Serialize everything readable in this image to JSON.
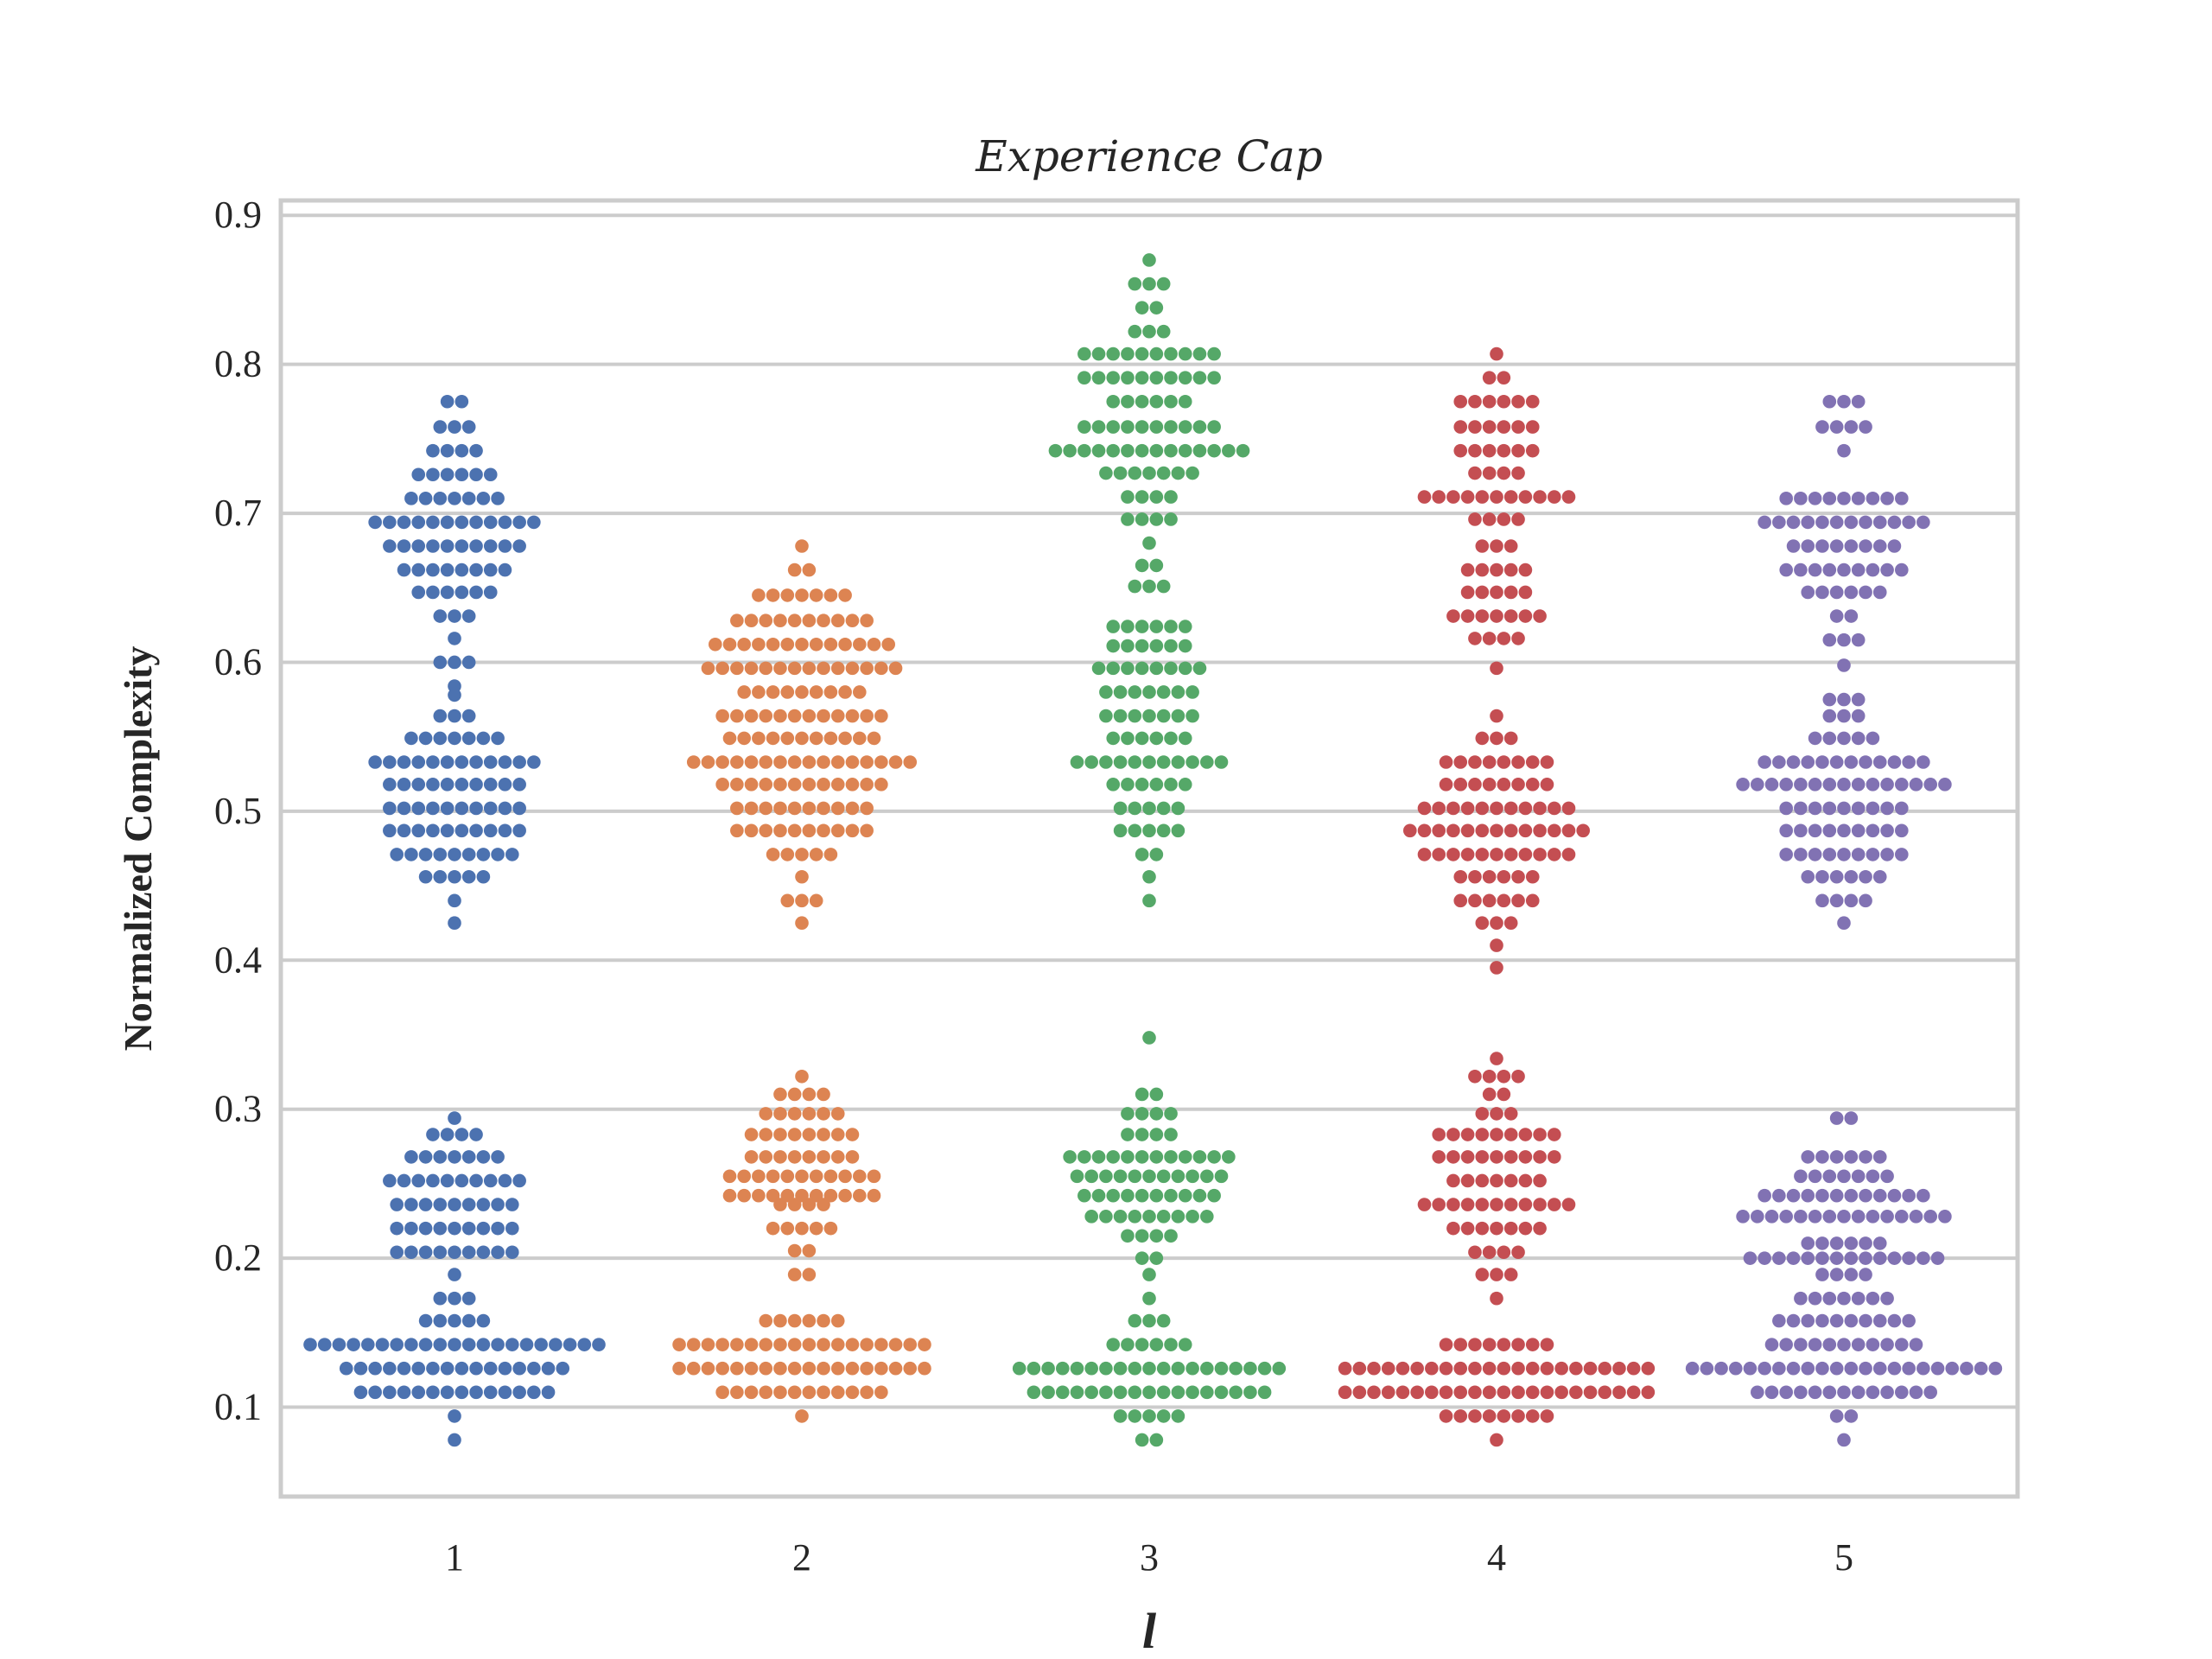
{
  "chart_data": {
    "type": "scatter",
    "subtype": "swarm",
    "title": "Experience Cap",
    "xlabel": "l",
    "ylabel": "Normalized Complexity",
    "categories": [
      "1",
      "2",
      "3",
      "4",
      "5"
    ],
    "ylim": [
      0.04,
      0.91
    ],
    "yticks": [
      "0.1",
      "0.2",
      "0.3",
      "0.4",
      "0.5",
      "0.6",
      "0.7",
      "0.8",
      "0.9"
    ],
    "grid": "horizontal",
    "legend": "none",
    "colors": [
      "#4c72b0",
      "#dd8452",
      "#55a868",
      "#c44e52",
      "#8172b3"
    ],
    "series": [
      {
        "category": "1",
        "bins": [
          [
            0.078,
            1
          ],
          [
            0.094,
            1
          ],
          [
            0.11,
            14
          ],
          [
            0.126,
            16
          ],
          [
            0.142,
            21
          ],
          [
            0.158,
            5
          ],
          [
            0.173,
            3
          ],
          [
            0.189,
            1
          ],
          [
            0.204,
            9
          ],
          [
            0.22,
            9
          ],
          [
            0.236,
            9
          ],
          [
            0.252,
            10
          ],
          [
            0.268,
            7
          ],
          [
            0.283,
            4
          ],
          [
            0.294,
            1
          ],
          [
            0.425,
            1
          ],
          [
            0.44,
            1
          ],
          [
            0.456,
            5
          ],
          [
            0.471,
            9
          ],
          [
            0.487,
            10
          ],
          [
            0.502,
            10
          ],
          [
            0.518,
            10
          ],
          [
            0.533,
            12
          ],
          [
            0.549,
            7
          ],
          [
            0.564,
            3
          ],
          [
            0.578,
            1
          ],
          [
            0.584,
            1
          ],
          [
            0.6,
            3
          ],
          [
            0.616,
            1
          ],
          [
            0.631,
            3
          ],
          [
            0.647,
            6
          ],
          [
            0.662,
            8
          ],
          [
            0.678,
            10
          ],
          [
            0.694,
            12
          ],
          [
            0.71,
            7
          ],
          [
            0.726,
            6
          ],
          [
            0.742,
            4
          ],
          [
            0.758,
            3
          ],
          [
            0.775,
            2
          ]
        ]
      },
      {
        "category": "2",
        "bins": [
          [
            0.094,
            1
          ],
          [
            0.11,
            12
          ],
          [
            0.126,
            18
          ],
          [
            0.142,
            18
          ],
          [
            0.158,
            6
          ],
          [
            0.189,
            2
          ],
          [
            0.205,
            2
          ],
          [
            0.22,
            5
          ],
          [
            0.236,
            4
          ],
          [
            0.242,
            11
          ],
          [
            0.255,
            11
          ],
          [
            0.268,
            8
          ],
          [
            0.283,
            8
          ],
          [
            0.297,
            6
          ],
          [
            0.31,
            4
          ],
          [
            0.322,
            1
          ],
          [
            0.425,
            1
          ],
          [
            0.44,
            3
          ],
          [
            0.456,
            1
          ],
          [
            0.471,
            5
          ],
          [
            0.487,
            10
          ],
          [
            0.502,
            10
          ],
          [
            0.518,
            12
          ],
          [
            0.533,
            16
          ],
          [
            0.549,
            11
          ],
          [
            0.564,
            12
          ],
          [
            0.58,
            9
          ],
          [
            0.596,
            14
          ],
          [
            0.612,
            13
          ],
          [
            0.628,
            10
          ],
          [
            0.645,
            7
          ],
          [
            0.662,
            2
          ],
          [
            0.678,
            1
          ]
        ]
      },
      {
        "category": "3",
        "bins": [
          [
            0.078,
            2
          ],
          [
            0.094,
            5
          ],
          [
            0.11,
            17
          ],
          [
            0.126,
            19
          ],
          [
            0.142,
            6
          ],
          [
            0.158,
            3
          ],
          [
            0.173,
            1
          ],
          [
            0.189,
            1
          ],
          [
            0.2,
            2
          ],
          [
            0.215,
            4
          ],
          [
            0.228,
            9
          ],
          [
            0.242,
            10
          ],
          [
            0.255,
            11
          ],
          [
            0.268,
            12
          ],
          [
            0.283,
            4
          ],
          [
            0.297,
            4
          ],
          [
            0.31,
            2
          ],
          [
            0.348,
            1
          ],
          [
            0.44,
            1
          ],
          [
            0.456,
            1
          ],
          [
            0.471,
            2
          ],
          [
            0.487,
            5
          ],
          [
            0.502,
            5
          ],
          [
            0.518,
            6
          ],
          [
            0.533,
            11
          ],
          [
            0.549,
            6
          ],
          [
            0.564,
            7
          ],
          [
            0.58,
            7
          ],
          [
            0.596,
            8
          ],
          [
            0.611,
            6
          ],
          [
            0.624,
            6
          ],
          [
            0.651,
            3
          ],
          [
            0.665,
            2
          ],
          [
            0.68,
            1
          ],
          [
            0.696,
            4
          ],
          [
            0.711,
            4
          ],
          [
            0.727,
            7
          ],
          [
            0.742,
            14
          ],
          [
            0.758,
            10
          ],
          [
            0.775,
            6
          ],
          [
            0.791,
            10
          ],
          [
            0.807,
            10
          ],
          [
            0.822,
            3
          ],
          [
            0.838,
            2
          ],
          [
            0.854,
            3
          ],
          [
            0.87,
            1
          ]
        ]
      },
      {
        "category": "4",
        "bins": [
          [
            0.078,
            1
          ],
          [
            0.094,
            8
          ],
          [
            0.11,
            22
          ],
          [
            0.126,
            22
          ],
          [
            0.142,
            8
          ],
          [
            0.173,
            1
          ],
          [
            0.189,
            3
          ],
          [
            0.204,
            4
          ],
          [
            0.22,
            7
          ],
          [
            0.236,
            11
          ],
          [
            0.252,
            7
          ],
          [
            0.268,
            9
          ],
          [
            0.283,
            9
          ],
          [
            0.297,
            3
          ],
          [
            0.31,
            2
          ],
          [
            0.322,
            4
          ],
          [
            0.334,
            1
          ],
          [
            0.395,
            1
          ],
          [
            0.41,
            1
          ],
          [
            0.425,
            3
          ],
          [
            0.44,
            6
          ],
          [
            0.456,
            6
          ],
          [
            0.471,
            11
          ],
          [
            0.487,
            13
          ],
          [
            0.502,
            11
          ],
          [
            0.518,
            8
          ],
          [
            0.533,
            8
          ],
          [
            0.549,
            3
          ],
          [
            0.564,
            1
          ],
          [
            0.596,
            1
          ],
          [
            0.616,
            4
          ],
          [
            0.631,
            7
          ],
          [
            0.647,
            5
          ],
          [
            0.662,
            5
          ],
          [
            0.678,
            3
          ],
          [
            0.696,
            4
          ],
          [
            0.711,
            11
          ],
          [
            0.727,
            4
          ],
          [
            0.742,
            6
          ],
          [
            0.758,
            6
          ],
          [
            0.775,
            6
          ],
          [
            0.791,
            2
          ],
          [
            0.807,
            1
          ]
        ]
      },
      {
        "category": "5",
        "bins": [
          [
            0.078,
            1
          ],
          [
            0.094,
            2
          ],
          [
            0.11,
            13
          ],
          [
            0.126,
            22
          ],
          [
            0.142,
            11
          ],
          [
            0.158,
            10
          ],
          [
            0.173,
            7
          ],
          [
            0.189,
            4
          ],
          [
            0.2,
            14
          ],
          [
            0.21,
            6
          ],
          [
            0.228,
            15
          ],
          [
            0.242,
            12
          ],
          [
            0.255,
            7
          ],
          [
            0.268,
            6
          ],
          [
            0.294,
            2
          ],
          [
            0.425,
            1
          ],
          [
            0.44,
            4
          ],
          [
            0.456,
            6
          ],
          [
            0.471,
            9
          ],
          [
            0.487,
            9
          ],
          [
            0.502,
            9
          ],
          [
            0.518,
            15
          ],
          [
            0.533,
            12
          ],
          [
            0.549,
            5
          ],
          [
            0.564,
            3
          ],
          [
            0.575,
            3
          ],
          [
            0.598,
            1
          ],
          [
            0.615,
            3
          ],
          [
            0.631,
            2
          ],
          [
            0.647,
            6
          ],
          [
            0.662,
            9
          ],
          [
            0.678,
            8
          ],
          [
            0.694,
            12
          ],
          [
            0.71,
            9
          ],
          [
            0.742,
            1
          ],
          [
            0.758,
            4
          ],
          [
            0.775,
            3
          ]
        ]
      }
    ]
  }
}
